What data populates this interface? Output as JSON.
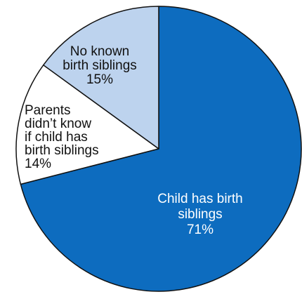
{
  "chart_data": {
    "type": "pie",
    "slices": [
      {
        "label_lines": [
          "Child has birth",
          "siblings",
          "71%"
        ],
        "value": 71,
        "color": "#0d6cbf",
        "text_color": "#ffffff"
      },
      {
        "label_lines": [
          "Parents",
          "didn’t know",
          "if child has",
          "birth siblings",
          "14%"
        ],
        "value": 14,
        "color": "#ffffff",
        "text_color": "#111111"
      },
      {
        "label_lines": [
          "No known",
          "birth siblings",
          "15%"
        ],
        "value": 15,
        "color": "#bdd3ee",
        "text_color": "#111111"
      }
    ],
    "start": "top",
    "direction": "clockwise",
    "outline_color": "#111111"
  }
}
